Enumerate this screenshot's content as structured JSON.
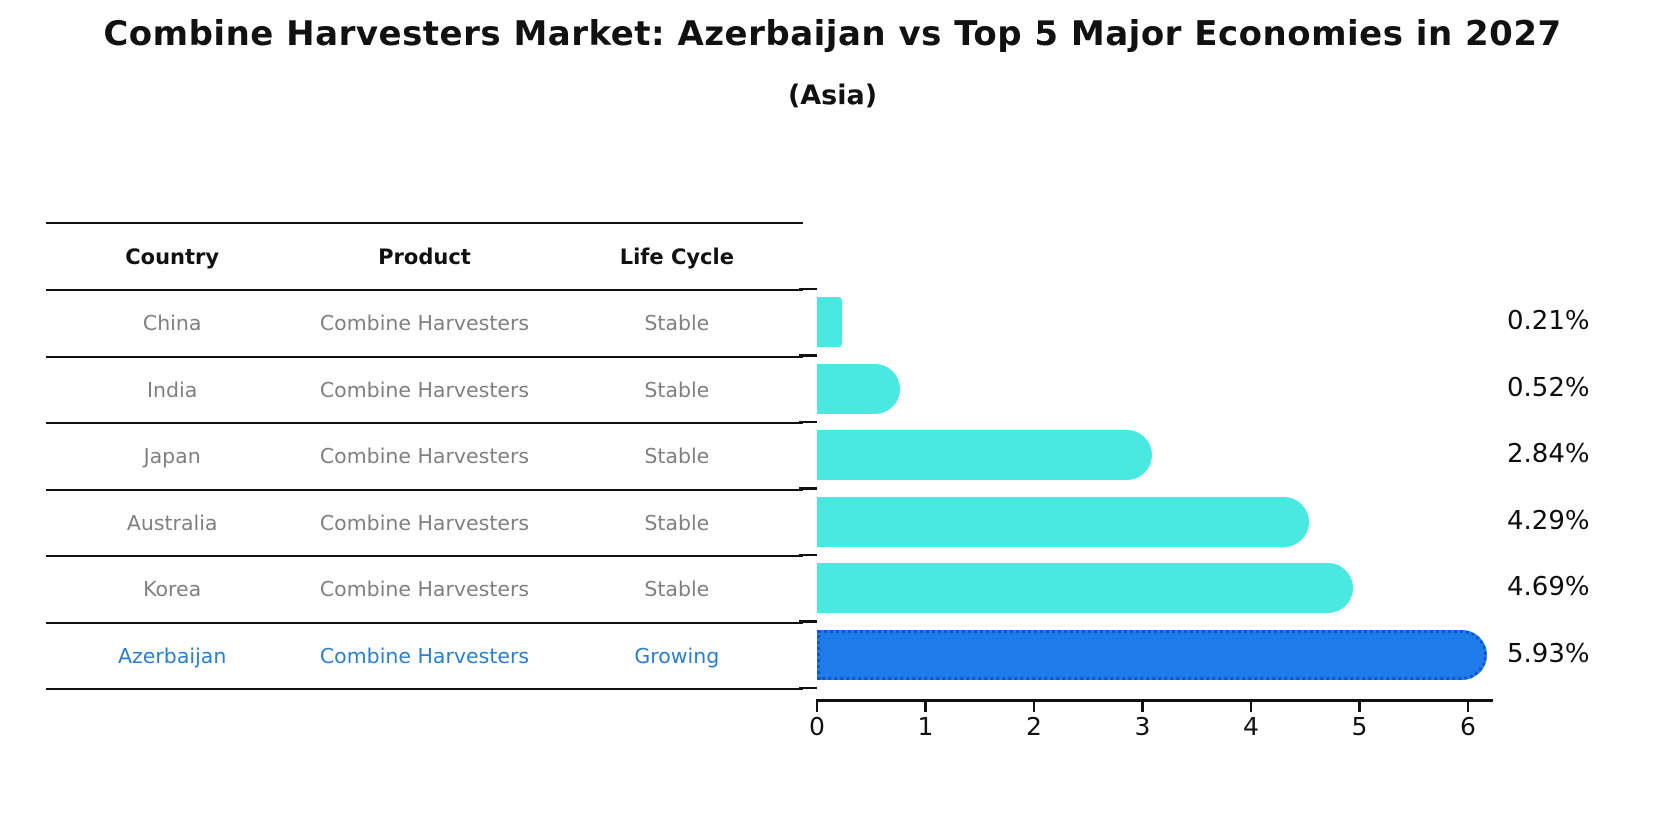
{
  "title": "Combine Harvesters Market: Azerbaijan vs Top 5 Major Economies in 2027",
  "subtitle": "(Asia)",
  "table": {
    "headers": {
      "country": "Country",
      "product": "Product",
      "life_cycle": "Life Cycle"
    },
    "rows": [
      {
        "country": "China",
        "product": "Combine Harvesters",
        "life_cycle": "Stable",
        "highlight": false
      },
      {
        "country": "India",
        "product": "Combine Harvesters",
        "life_cycle": "Stable",
        "highlight": false
      },
      {
        "country": "Japan",
        "product": "Combine Harvesters",
        "life_cycle": "Stable",
        "highlight": false
      },
      {
        "country": "Australia",
        "product": "Combine Harvesters",
        "life_cycle": "Stable",
        "highlight": false
      },
      {
        "country": "Korea",
        "product": "Combine Harvesters",
        "life_cycle": "Stable",
        "highlight": false
      },
      {
        "country": "Azerbaijan",
        "product": "Combine Harvesters",
        "life_cycle": "Growing",
        "highlight": true
      }
    ]
  },
  "chart_data": {
    "type": "bar",
    "orientation": "horizontal",
    "title": "Combine Harvesters Market: Azerbaijan vs Top 5 Major Economies in 2027",
    "subtitle": "(Asia)",
    "categories": [
      "China",
      "India",
      "Japan",
      "Australia",
      "Korea",
      "Azerbaijan"
    ],
    "values": [
      0.21,
      0.52,
      2.84,
      4.29,
      4.69,
      5.93
    ],
    "value_labels": [
      "0.21%",
      "0.52%",
      "2.84%",
      "4.29%",
      "4.69%",
      "5.93%"
    ],
    "x_ticks": [
      0,
      1,
      2,
      3,
      4,
      5,
      6
    ],
    "xlim": [
      0,
      6.23
    ],
    "grid": false,
    "legend": "none",
    "highlight_index": 5
  },
  "colors": {
    "bar_default": "#49e8e0",
    "bar_highlight": "#1e7ce8",
    "bar_highlight_border": "#0d55cc",
    "highlight_text": "#2b7fce",
    "row_text": "#808080",
    "axis": "#111111"
  }
}
